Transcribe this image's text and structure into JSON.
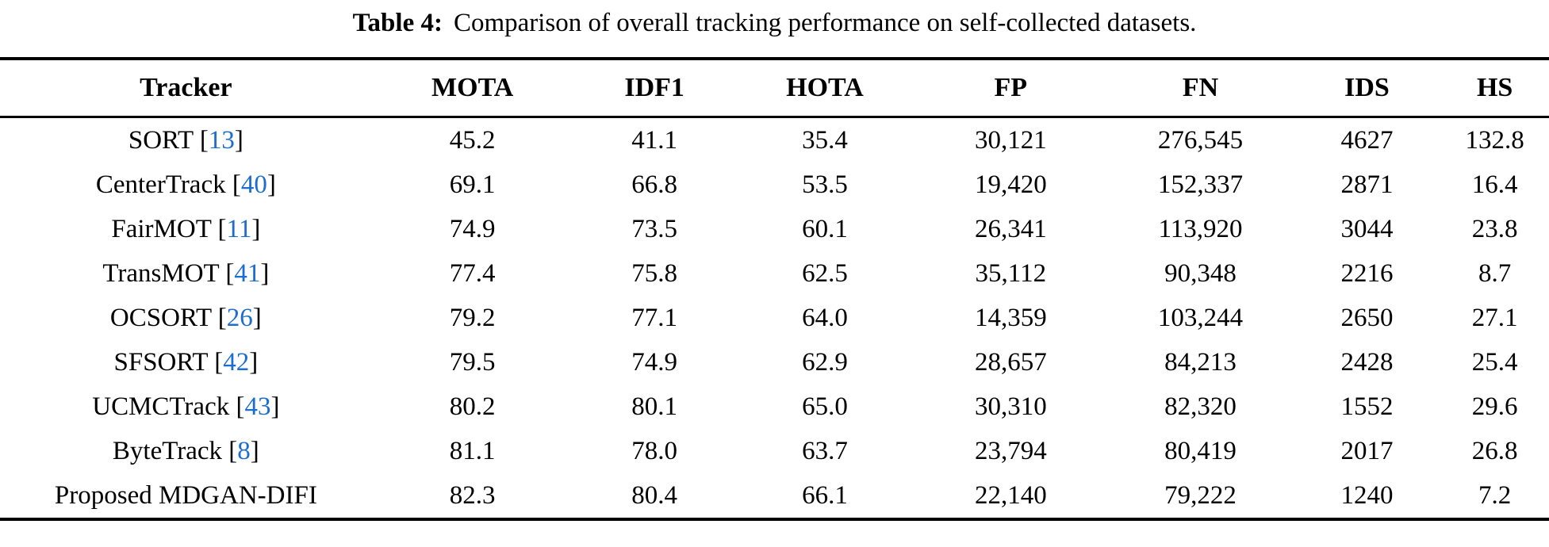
{
  "caption": {
    "label": "Table 4:",
    "text": "Comparison of overall tracking performance on self-collected datasets."
  },
  "colors": {
    "citation": "#1c6dd0",
    "text": "#000000",
    "background": "#ffffff",
    "rule": "#000000"
  },
  "table": {
    "columns": [
      "Tracker",
      "MOTA",
      "IDF1",
      "HOTA",
      "FP",
      "FN",
      "IDS",
      "HS"
    ],
    "rows": [
      {
        "tracker": "SORT",
        "cite_open": "[",
        "cite": "13",
        "cite_close": "]",
        "values": [
          "45.2",
          "41.1",
          "35.4",
          "30,121",
          "276,545",
          "4627",
          "132.8"
        ]
      },
      {
        "tracker": "CenterTrack",
        "cite_open": "[",
        "cite": "40",
        "cite_close": "]",
        "values": [
          "69.1",
          "66.8",
          "53.5",
          "19,420",
          "152,337",
          "2871",
          "16.4"
        ]
      },
      {
        "tracker": "FairMOT",
        "cite_open": "[",
        "cite": "11",
        "cite_close": "]",
        "values": [
          "74.9",
          "73.5",
          "60.1",
          "26,341",
          "113,920",
          "3044",
          "23.8"
        ]
      },
      {
        "tracker": "TransMOT",
        "cite_open": "[",
        "cite": "41",
        "cite_close": "]",
        "values": [
          "77.4",
          "75.8",
          "62.5",
          "35,112",
          "90,348",
          "2216",
          "8.7"
        ]
      },
      {
        "tracker": "OCSORT",
        "cite_open": "[",
        "cite": "26",
        "cite_close": "]",
        "values": [
          "79.2",
          "77.1",
          "64.0",
          "14,359",
          "103,244",
          "2650",
          "27.1"
        ]
      },
      {
        "tracker": "SFSORT",
        "cite_open": "[",
        "cite": "42",
        "cite_close": "]",
        "values": [
          "79.5",
          "74.9",
          "62.9",
          "28,657",
          "84,213",
          "2428",
          "25.4"
        ]
      },
      {
        "tracker": "UCMCTrack",
        "cite_open": "[",
        "cite": "43",
        "cite_close": "]",
        "values": [
          "80.2",
          "80.1",
          "65.0",
          "30,310",
          "82,320",
          "1552",
          "29.6"
        ]
      },
      {
        "tracker": "ByteTrack",
        "cite_open": "[",
        "cite": "8",
        "cite_close": "]",
        "values": [
          "81.1",
          "78.0",
          "63.7",
          "23,794",
          "80,419",
          "2017",
          "26.8"
        ]
      },
      {
        "tracker": "Proposed MDGAN-DIFI",
        "values": [
          "82.3",
          "80.4",
          "66.1",
          "22,140",
          "79,222",
          "1240",
          "7.2"
        ]
      }
    ]
  }
}
